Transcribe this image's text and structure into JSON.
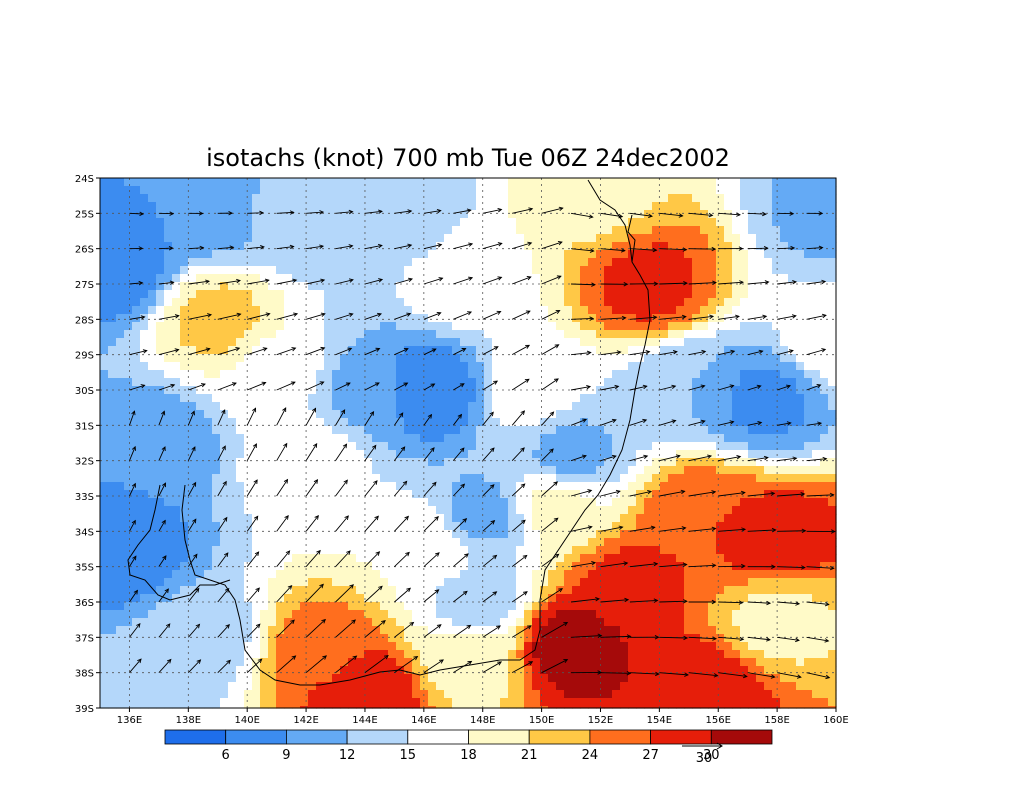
{
  "chart_data": {
    "type": "heatmap",
    "title": "isotachs (knot) 700 mb Tue 06Z 24dec2002",
    "xlim": [
      135,
      160
    ],
    "ylim": [
      -39,
      -24
    ],
    "x_ticks": [
      {
        "value": 136,
        "label": "136E"
      },
      {
        "value": 138,
        "label": "138E"
      },
      {
        "value": 140,
        "label": "140E"
      },
      {
        "value": 142,
        "label": "142E"
      },
      {
        "value": 144,
        "label": "144E"
      },
      {
        "value": 146,
        "label": "146E"
      },
      {
        "value": 148,
        "label": "148E"
      },
      {
        "value": 150,
        "label": "150E"
      },
      {
        "value": 152,
        "label": "152E"
      },
      {
        "value": 154,
        "label": "154E"
      },
      {
        "value": 156,
        "label": "156E"
      },
      {
        "value": 158,
        "label": "158E"
      },
      {
        "value": 160,
        "label": "160E"
      }
    ],
    "y_ticks": [
      {
        "value": -24,
        "label": "24S"
      },
      {
        "value": -25,
        "label": "25S"
      },
      {
        "value": -26,
        "label": "26S"
      },
      {
        "value": -27,
        "label": "27S"
      },
      {
        "value": -28,
        "label": "28S"
      },
      {
        "value": -29,
        "label": "29S"
      },
      {
        "value": -30,
        "label": "30S"
      },
      {
        "value": -31,
        "label": "31S"
      },
      {
        "value": -32,
        "label": "32S"
      },
      {
        "value": -33,
        "label": "33S"
      },
      {
        "value": -34,
        "label": "34S"
      },
      {
        "value": -35,
        "label": "35S"
      },
      {
        "value": -36,
        "label": "36S"
      },
      {
        "value": -37,
        "label": "37S"
      },
      {
        "value": -38,
        "label": "38S"
      },
      {
        "value": -39,
        "label": "39S"
      }
    ],
    "grid": true,
    "levels": [
      6,
      9,
      12,
      15,
      18,
      21,
      24,
      27,
      30
    ],
    "colors": [
      "#1e6eeb",
      "#3c8cf0",
      "#64aaf5",
      "#b4d7fa",
      "#ffffff",
      "#fffac8",
      "#ffc846",
      "#ff6e1e",
      "#e61e0a",
      "#a50a0a"
    ],
    "speed_centers": [
      {
        "lon": 135.5,
        "lat": -26.5,
        "value": 7
      },
      {
        "lon": 135.5,
        "lat": -34.5,
        "value": 6
      },
      {
        "lon": 138.5,
        "lat": -24.8,
        "value": 9
      },
      {
        "lon": 139,
        "lat": -28,
        "value": 22
      },
      {
        "lon": 137,
        "lat": -31.5,
        "value": 10
      },
      {
        "lon": 146.3,
        "lat": -30,
        "value": 6
      },
      {
        "lon": 144,
        "lat": -30,
        "value": 11
      },
      {
        "lon": 147.5,
        "lat": -27,
        "value": 17
      },
      {
        "lon": 149.5,
        "lat": -30,
        "value": 17
      },
      {
        "lon": 153.6,
        "lat": -27,
        "value": 28
      },
      {
        "lon": 151.8,
        "lat": -24.5,
        "value": 20
      },
      {
        "lon": 157.5,
        "lat": -30.3,
        "value": 8
      },
      {
        "lon": 155,
        "lat": -30,
        "value": 12
      },
      {
        "lon": 151,
        "lat": -31.8,
        "value": 11
      },
      {
        "lon": 148,
        "lat": -33.5,
        "value": 11
      },
      {
        "lon": 142,
        "lat": -32,
        "value": 17
      },
      {
        "lon": 144,
        "lat": -38.6,
        "value": 30
      },
      {
        "lon": 142.5,
        "lat": -37.5,
        "value": 26
      },
      {
        "lon": 151,
        "lat": -37.2,
        "value": 32
      },
      {
        "lon": 153,
        "lat": -35.5,
        "value": 28
      },
      {
        "lon": 158,
        "lat": -34.2,
        "value": 29
      },
      {
        "lon": 155.5,
        "lat": -33.5,
        "value": 27
      },
      {
        "lon": 155.5,
        "lat": -38.6,
        "value": 30
      },
      {
        "lon": 158,
        "lat": -36.5,
        "value": 20
      },
      {
        "lon": 147.8,
        "lat": -36,
        "value": 13
      },
      {
        "lon": 147.5,
        "lat": -37.5,
        "value": 19
      },
      {
        "lon": 138.5,
        "lat": -37,
        "value": 13
      },
      {
        "lon": 137,
        "lat": -38.5,
        "value": 14
      },
      {
        "lon": 141.5,
        "lat": -25,
        "value": 13
      },
      {
        "lon": 145,
        "lat": -25,
        "value": 13
      },
      {
        "lon": 141,
        "lat": -29.5,
        "value": 17
      },
      {
        "lon": 160,
        "lat": -28.5,
        "value": 17
      },
      {
        "lon": 160,
        "lat": -25,
        "value": 11
      },
      {
        "lon": 150.5,
        "lat": -33.3,
        "value": 19
      },
      {
        "lon": 146,
        "lat": -34.5,
        "value": 18
      }
    ],
    "vector_reference": {
      "value": 30,
      "label": "30"
    },
    "colorbar_labels": [
      "6",
      "9",
      "12",
      "15",
      "18",
      "21",
      "24",
      "27",
      "30"
    ]
  }
}
